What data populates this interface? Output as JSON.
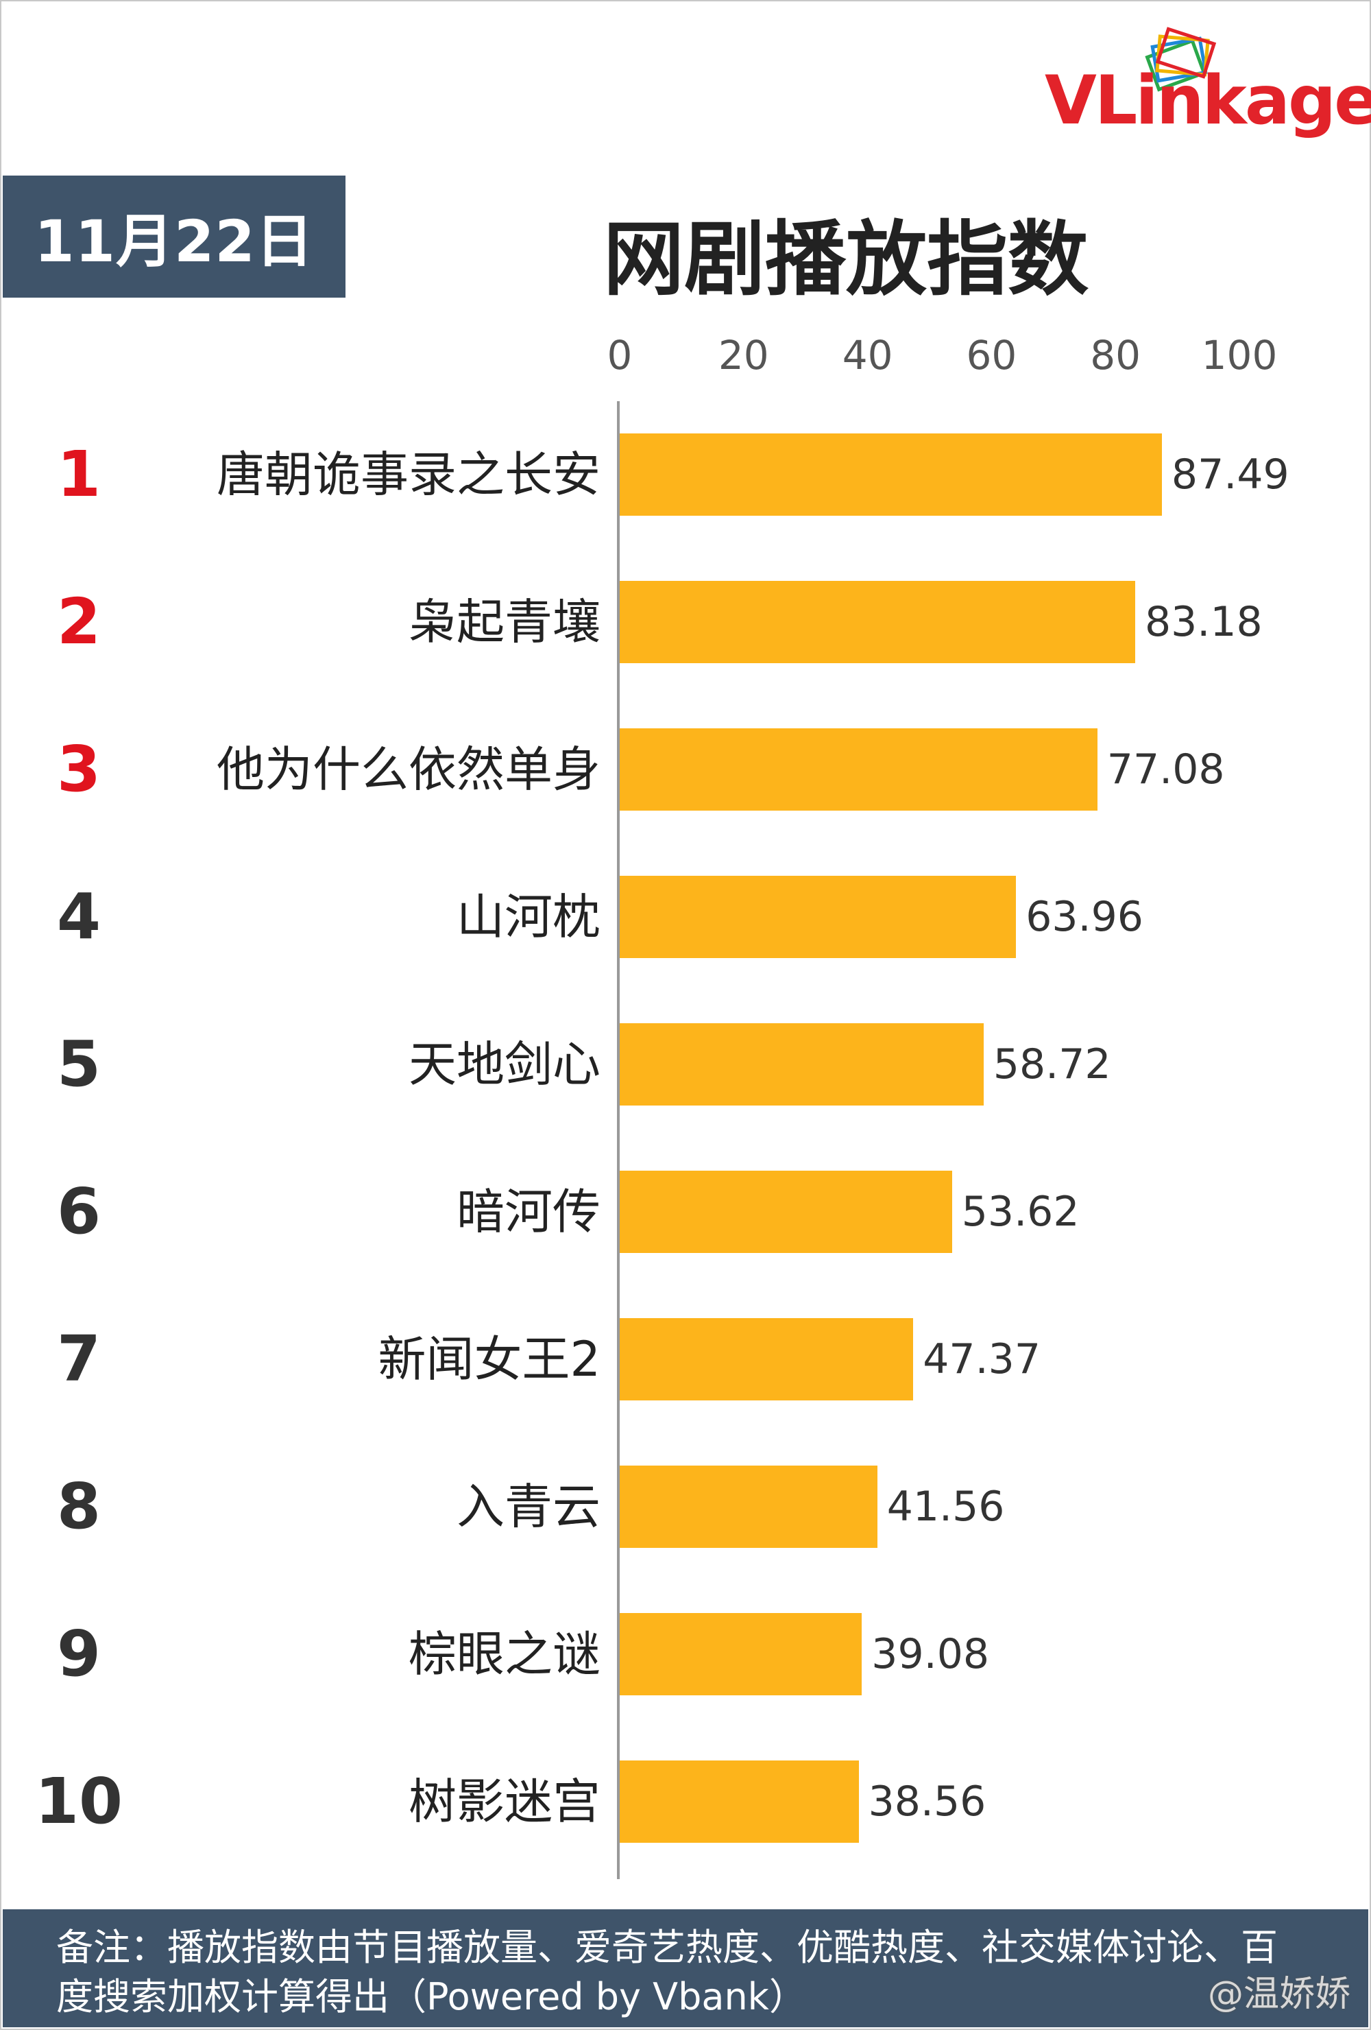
{
  "logo": {
    "text_v": "VL",
    "text_rest": "inkage"
  },
  "date": "11月22日",
  "chart_data": {
    "type": "bar",
    "orientation": "horizontal",
    "title": "网剧播放指数",
    "xlim": [
      0,
      100
    ],
    "ticks": [
      0,
      20,
      40,
      60,
      80,
      100
    ],
    "rows": [
      {
        "rank": "1",
        "name": "唐朝诡事录之长安",
        "value": 87.49
      },
      {
        "rank": "2",
        "name": "枭起青壤",
        "value": 83.18
      },
      {
        "rank": "3",
        "name": "他为什么依然单身",
        "value": 77.08
      },
      {
        "rank": "4",
        "name": "山河枕",
        "value": 63.96
      },
      {
        "rank": "5",
        "name": "天地剑心",
        "value": 58.72
      },
      {
        "rank": "6",
        "name": "暗河传",
        "value": 53.62
      },
      {
        "rank": "7",
        "name": "新闻女王2",
        "value": 47.37
      },
      {
        "rank": "8",
        "name": "入青云",
        "value": 41.56
      },
      {
        "rank": "9",
        "name": "棕眼之谜",
        "value": 39.08
      },
      {
        "rank": "10",
        "name": "树影迷宫",
        "value": 38.56
      }
    ],
    "bar_color": "#fdb41b",
    "top_rank_color": "#e0141e"
  },
  "footer": {
    "note": "备注：播放指数由节目播放量、爱奇艺热度、优酷热度、社交媒体讨论、百度搜索加权计算得出（Powered by Vbank）"
  },
  "watermark": "@温娇娇"
}
